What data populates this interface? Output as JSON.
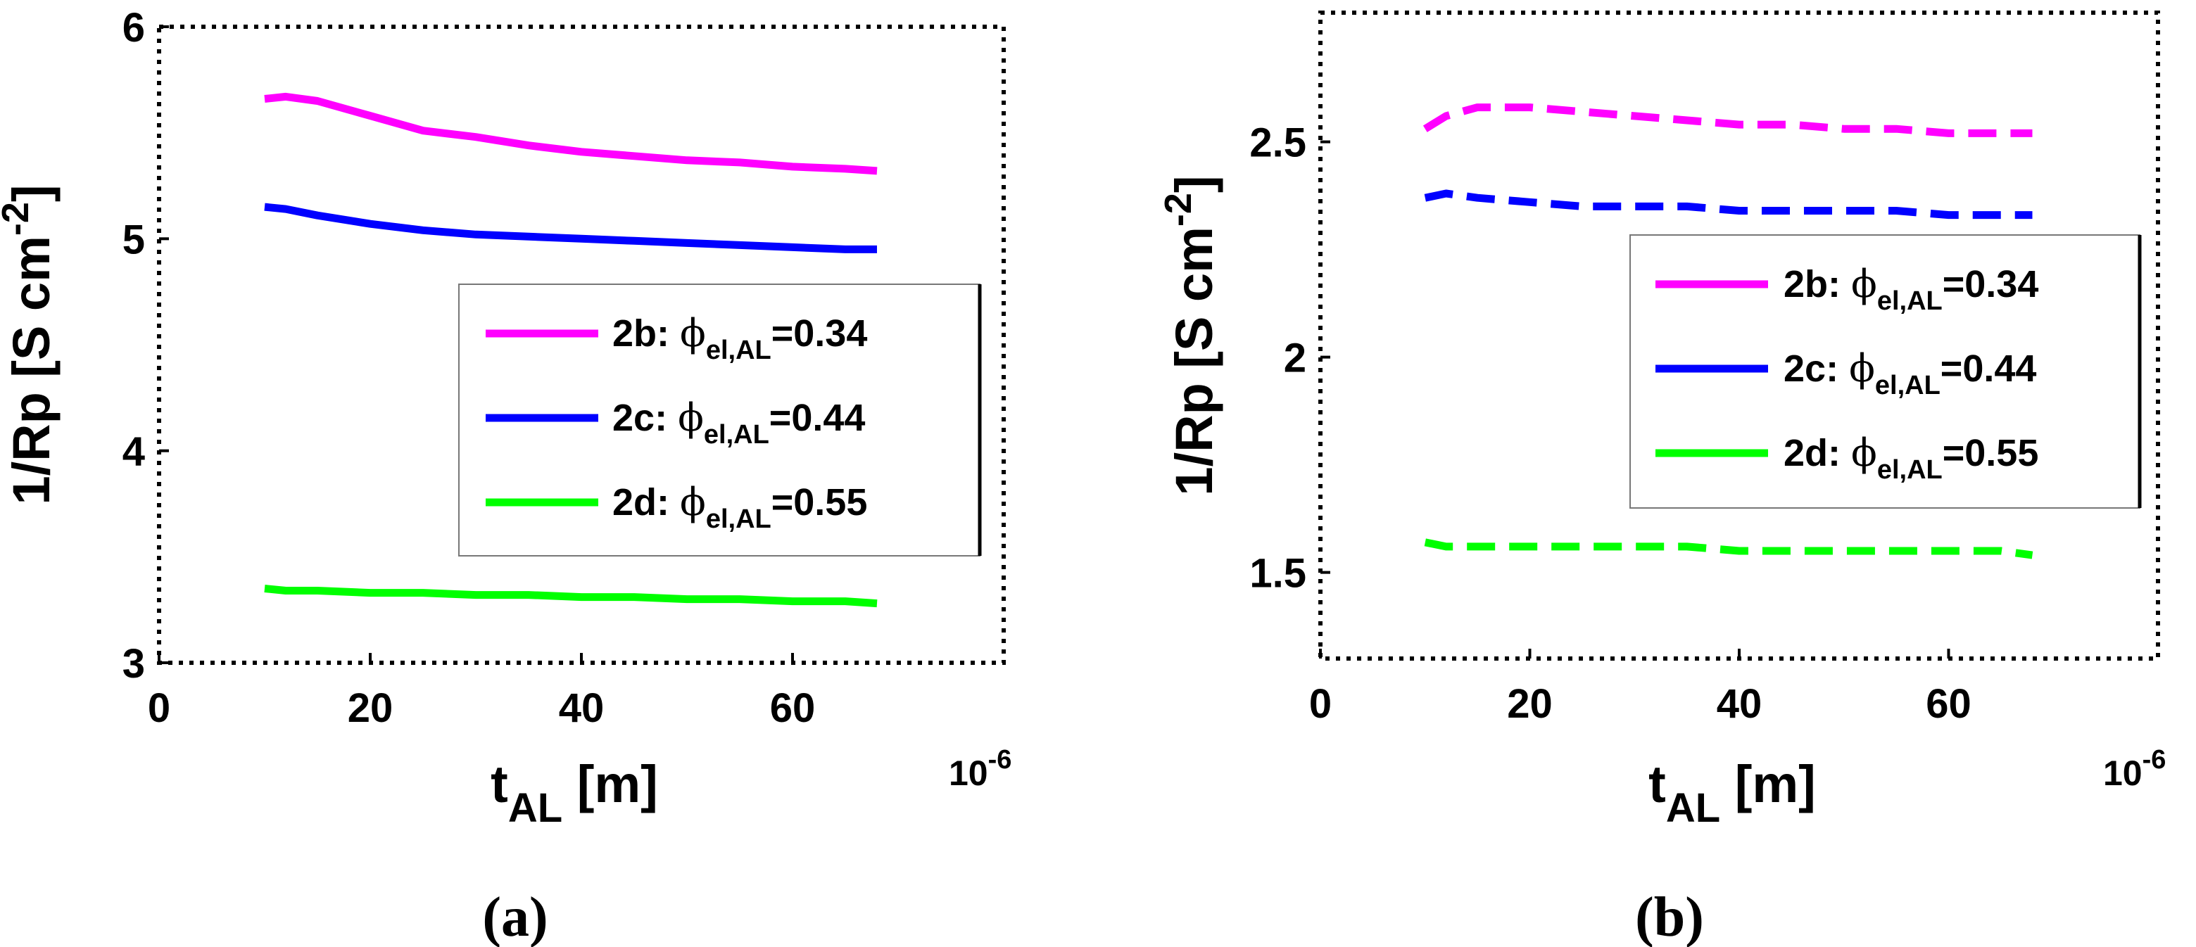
{
  "chart_data": [
    {
      "type": "line",
      "panel_label": "(a)",
      "xlabel": "t",
      "xlabel_sub": "AL",
      "xlabel_unit": " [m]",
      "x_exponent": "10",
      "x_exponent_power": "-6",
      "ylabel": "1/Rp [S cm",
      "ylabel_sup": "-2",
      "ylabel_end": "]",
      "xlim": [
        0,
        80
      ],
      "ylim": [
        3,
        6
      ],
      "xticks": [
        0,
        20,
        40,
        60
      ],
      "yticks": [
        3,
        4,
        5,
        6
      ],
      "line_style": "solid",
      "legend_placement": "right",
      "x": [
        10,
        12,
        15,
        20,
        25,
        30,
        35,
        40,
        45,
        50,
        55,
        60,
        65,
        68
      ],
      "series": [
        {
          "name_main": "2b: ",
          "name_greek": "ϕ",
          "name_sub": "el,AL",
          "name_value": "=0.34",
          "color": "#ff00ff",
          "values": [
            5.66,
            5.67,
            5.65,
            5.58,
            5.51,
            5.48,
            5.44,
            5.41,
            5.39,
            5.37,
            5.36,
            5.34,
            5.33,
            5.32
          ]
        },
        {
          "name_main": "2c: ",
          "name_greek": "ϕ",
          "name_sub": "el,AL",
          "name_value": "=0.44",
          "color": "#0000ff",
          "values": [
            5.15,
            5.14,
            5.11,
            5.07,
            5.04,
            5.02,
            5.01,
            5.0,
            4.99,
            4.98,
            4.97,
            4.96,
            4.95,
            4.95
          ]
        },
        {
          "name_main": "2d: ",
          "name_greek": "ϕ",
          "name_sub": "el,AL",
          "name_value": "=0.55",
          "color": "#00ff00",
          "values": [
            3.35,
            3.34,
            3.34,
            3.33,
            3.33,
            3.32,
            3.32,
            3.31,
            3.31,
            3.3,
            3.3,
            3.29,
            3.29,
            3.28
          ]
        }
      ]
    },
    {
      "type": "line",
      "panel_label": "(b)",
      "xlabel": "t",
      "xlabel_sub": "AL",
      "xlabel_unit": " [m]",
      "x_exponent": "10",
      "x_exponent_power": "-6",
      "ylabel": "1/Rp [S cm",
      "ylabel_sup": "-2",
      "ylabel_end": "]",
      "xlim": [
        0,
        80
      ],
      "ylim": [
        1.3,
        2.8
      ],
      "xticks": [
        0,
        20,
        40,
        60
      ],
      "yticks": [
        1.5,
        2,
        2.5
      ],
      "ytick_labels": [
        "1.5",
        "2",
        "2.5"
      ],
      "line_style": "dashed",
      "legend_placement": "right",
      "x": [
        10,
        12,
        15,
        20,
        25,
        30,
        35,
        40,
        45,
        50,
        55,
        60,
        65,
        68
      ],
      "series": [
        {
          "name_main": "2b: ",
          "name_greek": "ϕ",
          "name_sub": "el,AL",
          "name_value": "=0.34",
          "color": "#ff00ff",
          "values": [
            2.53,
            2.56,
            2.58,
            2.58,
            2.57,
            2.56,
            2.55,
            2.54,
            2.54,
            2.53,
            2.53,
            2.52,
            2.52,
            2.52
          ]
        },
        {
          "name_main": "2c: ",
          "name_greek": "ϕ",
          "name_sub": "el,AL",
          "name_value": "=0.44",
          "color": "#0000ff",
          "values": [
            2.37,
            2.38,
            2.37,
            2.36,
            2.35,
            2.35,
            2.35,
            2.34,
            2.34,
            2.34,
            2.34,
            2.33,
            2.33,
            2.33
          ]
        },
        {
          "name_main": "2d: ",
          "name_greek": "ϕ",
          "name_sub": "el,AL",
          "name_value": "=0.55",
          "color": "#00ff00",
          "values": [
            1.57,
            1.56,
            1.56,
            1.56,
            1.56,
            1.56,
            1.56,
            1.55,
            1.55,
            1.55,
            1.55,
            1.55,
            1.55,
            1.54
          ]
        }
      ]
    }
  ]
}
